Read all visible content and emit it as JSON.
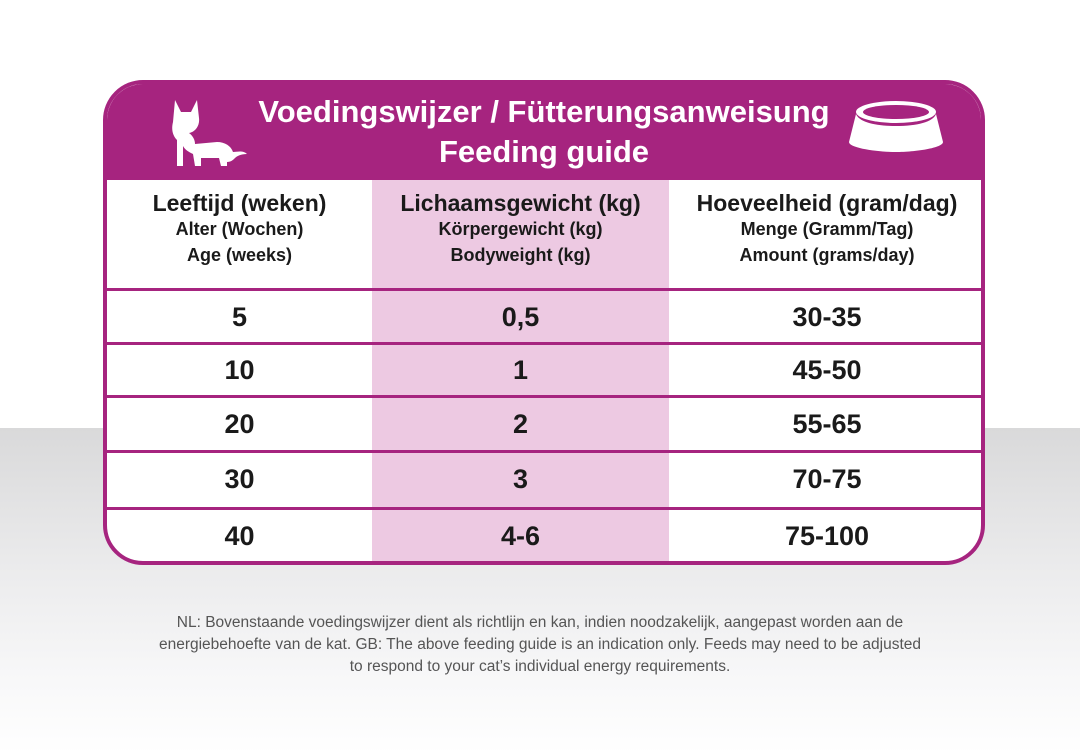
{
  "banner": {
    "title_line1": "Voedingswijzer / Fütterungsanweisung",
    "title_line2": "Feeding guide",
    "cat_icon": "kitten-silhouette-icon",
    "bowl_icon": "food-bowl-icon"
  },
  "colors": {
    "accent": "#a6247f",
    "column_highlight": "#edc9e2"
  },
  "table": {
    "columns": [
      {
        "nl": "Leeftijd (weken)",
        "de": "Alter (Wochen)",
        "en": "Age (weeks)"
      },
      {
        "nl": "Lichaamsgewicht (kg)",
        "de": "Körpergewicht (kg)",
        "en": "Bodyweight (kg)"
      },
      {
        "nl": "Hoeveelheid (gram/dag)",
        "de": "Menge (Gramm/Tag)",
        "en": "Amount (grams/day)"
      }
    ],
    "rows": [
      {
        "age": "5",
        "weight": "0,5",
        "amount": "30-35"
      },
      {
        "age": "10",
        "weight": "1",
        "amount": "45-50"
      },
      {
        "age": "20",
        "weight": "2",
        "amount": "55-65"
      },
      {
        "age": "30",
        "weight": "3",
        "amount": "70-75"
      },
      {
        "age": "40",
        "weight": "4-6",
        "amount": "75-100"
      }
    ]
  },
  "footnote": {
    "line1": "NL: Bovenstaande voedingswijzer dient als richtlijn en kan, indien noodzakelijk, aangepast worden aan de",
    "line2": "energiebehoefte van de kat. GB: The above feeding guide is an indication only. Feeds may need to be adjusted",
    "line3": "to respond to your cat’s individual energy requirements."
  }
}
